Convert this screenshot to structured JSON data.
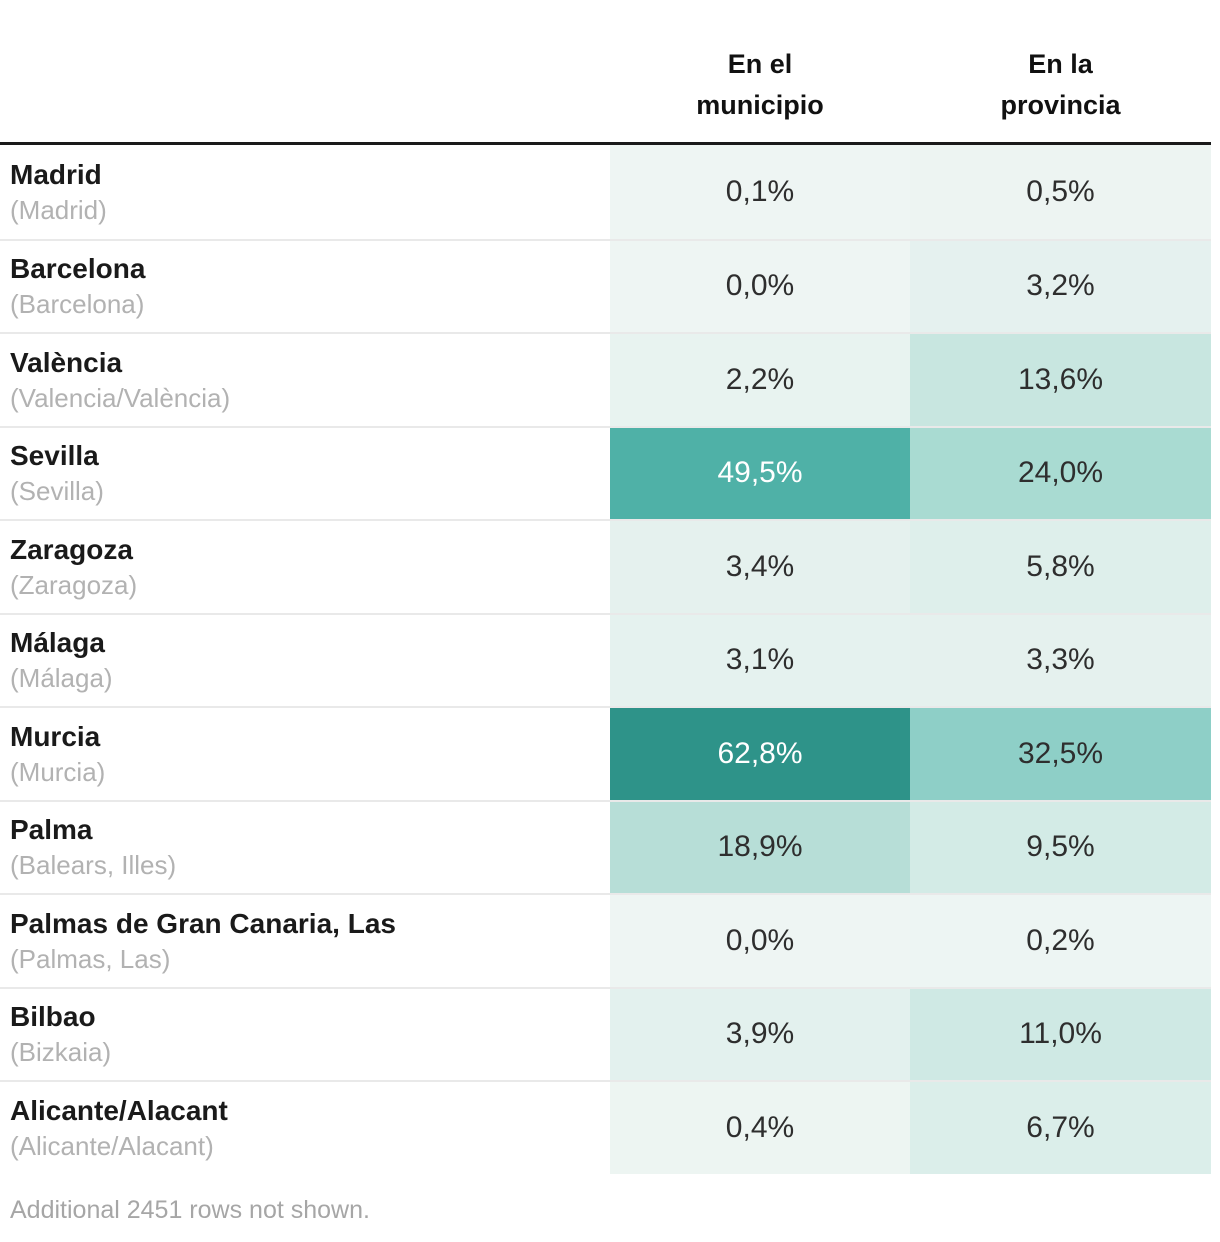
{
  "chart_data": {
    "type": "table",
    "columns": [
      "En el\nmunicipio",
      "En la\nprovincia"
    ],
    "rows": [
      {
        "city": "Madrid",
        "region": "(Madrid)",
        "municipio_label": "0,1%",
        "municipio_value": 0.1,
        "provincia_label": "0,5%",
        "provincia_value": 0.5
      },
      {
        "city": "Barcelona",
        "region": "(Barcelona)",
        "municipio_label": "0,0%",
        "municipio_value": 0.0,
        "provincia_label": "3,2%",
        "provincia_value": 3.2
      },
      {
        "city": "València",
        "region": "(Valencia/València)",
        "municipio_label": "2,2%",
        "municipio_value": 2.2,
        "provincia_label": "13,6%",
        "provincia_value": 13.6
      },
      {
        "city": "Sevilla",
        "region": "(Sevilla)",
        "municipio_label": "49,5%",
        "municipio_value": 49.5,
        "provincia_label": "24,0%",
        "provincia_value": 24.0
      },
      {
        "city": "Zaragoza",
        "region": "(Zaragoza)",
        "municipio_label": "3,4%",
        "municipio_value": 3.4,
        "provincia_label": "5,8%",
        "provincia_value": 5.8
      },
      {
        "city": "Málaga",
        "region": "(Málaga)",
        "municipio_label": "3,1%",
        "municipio_value": 3.1,
        "provincia_label": "3,3%",
        "provincia_value": 3.3
      },
      {
        "city": "Murcia",
        "region": "(Murcia)",
        "municipio_label": "62,8%",
        "municipio_value": 62.8,
        "provincia_label": "32,5%",
        "provincia_value": 32.5
      },
      {
        "city": "Palma",
        "region": "(Balears, Illes)",
        "municipio_label": "18,9%",
        "municipio_value": 18.9,
        "provincia_label": "9,5%",
        "provincia_value": 9.5
      },
      {
        "city": "Palmas de Gran Canaria, Las",
        "region": "(Palmas, Las)",
        "municipio_label": "0,0%",
        "municipio_value": 0.0,
        "provincia_label": "0,2%",
        "provincia_value": 0.2
      },
      {
        "city": "Bilbao",
        "region": "(Bizkaia)",
        "municipio_label": "3,9%",
        "municipio_value": 3.9,
        "provincia_label": "11,0%",
        "provincia_value": 11.0
      },
      {
        "city": "Alicante/Alacant",
        "region": "(Alicante/Alacant)",
        "municipio_label": "0,4%",
        "municipio_value": 0.4,
        "provincia_label": "6,7%",
        "provincia_value": 6.7
      }
    ],
    "footer_note": "Additional 2451 rows not shown.",
    "color_scale": {
      "stops": [
        [
          0,
          "#eef5f3"
        ],
        [
          13.6,
          "#c8e6e0"
        ],
        [
          18.9,
          "#b7ded7"
        ],
        [
          24.0,
          "#a9dbd2"
        ],
        [
          32.5,
          "#8ecfc7"
        ],
        [
          49.5,
          "#4fb1a7"
        ],
        [
          62.8,
          "#2e9389"
        ]
      ],
      "white_text_threshold": 40,
      "dark_text_color": "#2e2e2e",
      "light_text_color": "#ffffff"
    },
    "layout": {
      "legend": "none",
      "grid": "row-separators",
      "header_rule_color": "#1a1a1a"
    }
  }
}
